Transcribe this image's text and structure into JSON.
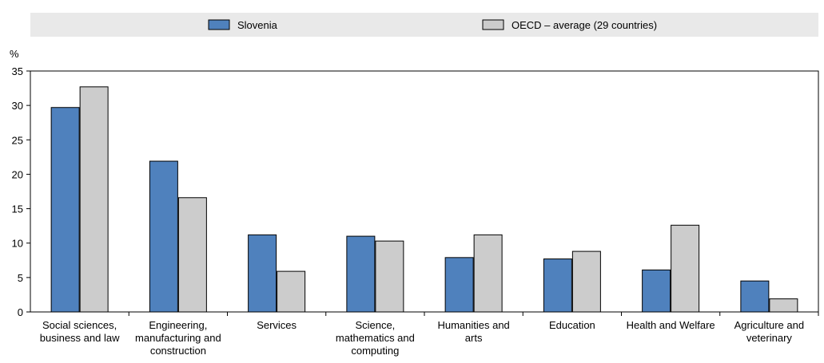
{
  "chart_data": {
    "type": "bar",
    "unit_label": "%",
    "ylim": [
      0,
      35
    ],
    "yticks": [
      0,
      5,
      10,
      15,
      20,
      25,
      30,
      35
    ],
    "categories": [
      [
        "Social sciences,",
        "business and law"
      ],
      [
        "Engineering,",
        "manufacturing and",
        "construction"
      ],
      [
        "Services"
      ],
      [
        "Science,",
        "mathematics and",
        "computing"
      ],
      [
        "Humanities and",
        "arts"
      ],
      [
        "Education"
      ],
      [
        "Health and Welfare"
      ],
      [
        "Agriculture and",
        "veterinary"
      ]
    ],
    "series": [
      {
        "name": "Slovenia",
        "color": "#4f81bd",
        "values": [
          29.7,
          21.9,
          11.2,
          11.0,
          7.9,
          7.7,
          6.1,
          4.5
        ]
      },
      {
        "name": "OECD – average (29 countries)",
        "color": "#cccccc",
        "values": [
          32.7,
          16.6,
          5.9,
          10.3,
          11.2,
          8.8,
          12.6,
          1.9
        ]
      }
    ],
    "legend_position": "top",
    "grid": false
  }
}
